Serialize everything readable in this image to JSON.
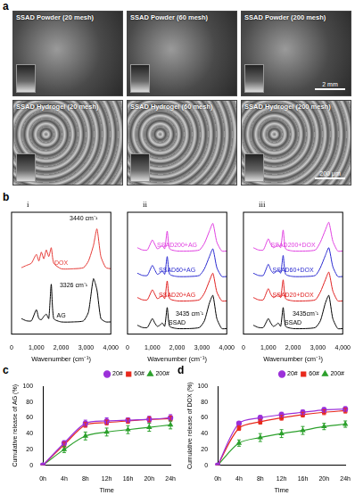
{
  "panel_a": {
    "label": "a",
    "images": [
      {
        "label": "SSAD Powder (20 mesh)"
      },
      {
        "label": "SSAD Powder (60 mesh)"
      },
      {
        "label": "SSAD Powder (200 mesh)",
        "scale_bar": "2 mm"
      },
      {
        "label": "SSAD Hydrogel (20 mesh)"
      },
      {
        "label": "SSAD Hydrogel (60 mesh)"
      },
      {
        "label": "SSAD Hydrogel (200 mesh)",
        "scale_bar": "200 μm"
      }
    ]
  },
  "panel_b_label": "b",
  "chart_data": [
    {
      "type": "line",
      "panel_label": "i",
      "x_label": "Wavenumber (cm⁻¹)",
      "x": [
        400,
        600,
        800,
        1000,
        1100,
        1200,
        1300,
        1400,
        1500,
        1600,
        1700,
        2000,
        2500,
        2900,
        3100,
        3300,
        3440,
        3600,
        3800,
        4000
      ],
      "xlim": [
        0,
        4000
      ],
      "xticks": [
        0,
        1000,
        2000,
        3000,
        4000
      ],
      "ylim": [
        0,
        110
      ],
      "tick_labels": "x",
      "grid": false,
      "series": [
        {
          "name": "DOX",
          "color": "#e53935",
          "values": [
            60,
            62,
            64,
            72,
            66,
            74,
            68,
            76,
            70,
            78,
            64,
            59,
            59,
            60,
            66,
            80,
            95,
            70,
            60,
            59
          ]
        },
        {
          "name": "AG",
          "color": "#000000",
          "values": [
            14,
            12,
            12,
            22,
            14,
            13,
            16,
            18,
            14,
            45,
            14,
            11,
            11,
            12,
            20,
            50,
            40,
            14,
            11,
            11
          ]
        }
      ],
      "annotations": [
        {
          "text": "3440 cm⁻¹",
          "x": 2900,
          "y": 104
        },
        {
          "text": "3326 cm⁻¹",
          "x": 2500,
          "y": 44
        }
      ]
    },
    {
      "type": "line",
      "panel_label": "ii",
      "x_label": "Wavenumber (cm⁻¹)",
      "x": [
        400,
        600,
        800,
        1000,
        1100,
        1200,
        1300,
        1400,
        1500,
        1600,
        1700,
        2000,
        2500,
        2900,
        3100,
        3300,
        3440,
        3600,
        3800,
        4000
      ],
      "xlim": [
        0,
        4000
      ],
      "xticks": [
        0,
        1000,
        2000,
        3000,
        4000
      ],
      "ylim": [
        0,
        110
      ],
      "tick_labels": "x",
      "grid": false,
      "series": [
        {
          "name": "SSAD200+AG",
          "color": "#e040e0",
          "values": [
            78,
            76,
            76,
            85,
            81,
            77,
            78,
            80,
            77,
            93,
            77,
            75,
            75,
            76,
            82,
            93,
            100,
            83,
            75,
            75
          ]
        },
        {
          "name": "SSAD60+AG",
          "color": "#2a2ad0",
          "values": [
            55,
            53,
            53,
            62,
            58,
            54,
            55,
            57,
            54,
            70,
            54,
            52,
            52,
            53,
            59,
            70,
            77,
            60,
            52,
            52
          ]
        },
        {
          "name": "SSAD20+AG",
          "color": "#e02020",
          "values": [
            33,
            31,
            31,
            40,
            36,
            32,
            33,
            35,
            32,
            48,
            32,
            30,
            30,
            31,
            37,
            48,
            55,
            38,
            30,
            30
          ]
        },
        {
          "name": "SSAD",
          "color": "#000000",
          "values": [
            8,
            6,
            6,
            14,
            10,
            7,
            8,
            10,
            7,
            24,
            7,
            5,
            5,
            6,
            12,
            28,
            35,
            14,
            5,
            5
          ]
        }
      ],
      "annotations": [
        {
          "text": "3435 cm⁻¹",
          "x": 2500,
          "y": 18
        }
      ]
    },
    {
      "type": "line",
      "panel_label": "iii",
      "x_label": "Wavenumber (cm⁻¹)",
      "x": [
        400,
        600,
        800,
        1000,
        1100,
        1200,
        1300,
        1400,
        1500,
        1600,
        1700,
        2000,
        2500,
        2900,
        3100,
        3300,
        3440,
        3600,
        3800,
        4000
      ],
      "xlim": [
        0,
        4000
      ],
      "xticks": [
        0,
        1000,
        2000,
        3000,
        4000
      ],
      "ylim": [
        0,
        110
      ],
      "tick_labels": "x",
      "grid": false,
      "series": [
        {
          "name": "SSAD200+DOX",
          "color": "#e040e0",
          "values": [
            78,
            76,
            76,
            86,
            81,
            78,
            79,
            81,
            78,
            94,
            77,
            75,
            75,
            76,
            83,
            94,
            101,
            84,
            75,
            75
          ]
        },
        {
          "name": "SSAD60+DOX",
          "color": "#2a2ad0",
          "values": [
            55,
            53,
            53,
            63,
            58,
            55,
            56,
            58,
            55,
            71,
            54,
            52,
            52,
            53,
            60,
            71,
            78,
            61,
            52,
            52
          ]
        },
        {
          "name": "SSAD20+DOX",
          "color": "#e02020",
          "values": [
            33,
            31,
            31,
            41,
            36,
            33,
            34,
            36,
            33,
            49,
            32,
            30,
            30,
            31,
            38,
            49,
            56,
            39,
            30,
            30
          ]
        },
        {
          "name": "SSAD",
          "color": "#000000",
          "values": [
            8,
            6,
            6,
            14,
            10,
            7,
            8,
            10,
            7,
            24,
            7,
            5,
            5,
            6,
            12,
            28,
            35,
            14,
            5,
            5
          ]
        }
      ],
      "annotations": [
        {
          "text": "3435cm⁻¹",
          "x": 2500,
          "y": 18
        }
      ]
    },
    {
      "type": "line",
      "panel_label": "c",
      "x_label": "Time",
      "y_label": "Cumulative release of AG (%)",
      "categories": [
        "0h",
        "4h",
        "8h",
        "12h",
        "16h",
        "20h",
        "24h"
      ],
      "ylim": [
        0,
        100
      ],
      "yticks": [
        0,
        20,
        40,
        60,
        80,
        100
      ],
      "grid": false,
      "legend": "upper right",
      "series": [
        {
          "name": "20#",
          "color": "#9b30d9",
          "marker": "circle",
          "values": [
            0,
            28,
            53,
            56,
            57,
            58,
            60
          ],
          "errors": [
            0,
            3,
            4,
            4,
            3,
            4,
            4
          ]
        },
        {
          "name": "60#",
          "color": "#e8291c",
          "marker": "square",
          "values": [
            0,
            26,
            51,
            54,
            56,
            58,
            59
          ],
          "errors": [
            0,
            3,
            3,
            3,
            3,
            3,
            3
          ]
        },
        {
          "name": "200#",
          "color": "#2ca02c",
          "marker": "triangle",
          "values": [
            0,
            20,
            37,
            42,
            45,
            48,
            51
          ],
          "errors": [
            0,
            4,
            5,
            5,
            5,
            5,
            5
          ]
        }
      ]
    },
    {
      "type": "line",
      "panel_label": "d",
      "x_label": "Time",
      "y_label": "Cumulative release of DOX (%)",
      "categories": [
        "0h",
        "4h",
        "8h",
        "12h",
        "16h",
        "20h",
        "24h"
      ],
      "ylim": [
        0,
        100
      ],
      "yticks": [
        0,
        20,
        40,
        60,
        80,
        100
      ],
      "grid": false,
      "legend": "upper right",
      "series": [
        {
          "name": "20#",
          "color": "#9b30d9",
          "marker": "circle",
          "values": [
            0,
            53,
            60,
            64,
            67,
            70,
            71
          ],
          "errors": [
            0,
            2,
            3,
            3,
            3,
            3,
            3
          ]
        },
        {
          "name": "60#",
          "color": "#e8291c",
          "marker": "square",
          "values": [
            0,
            47,
            55,
            60,
            64,
            67,
            69
          ],
          "errors": [
            0,
            3,
            3,
            3,
            3,
            3,
            3
          ]
        },
        {
          "name": "200#",
          "color": "#2ca02c",
          "marker": "triangle",
          "values": [
            0,
            28,
            35,
            40,
            44,
            49,
            52
          ],
          "errors": [
            0,
            4,
            5,
            5,
            5,
            4,
            4
          ]
        }
      ]
    }
  ]
}
